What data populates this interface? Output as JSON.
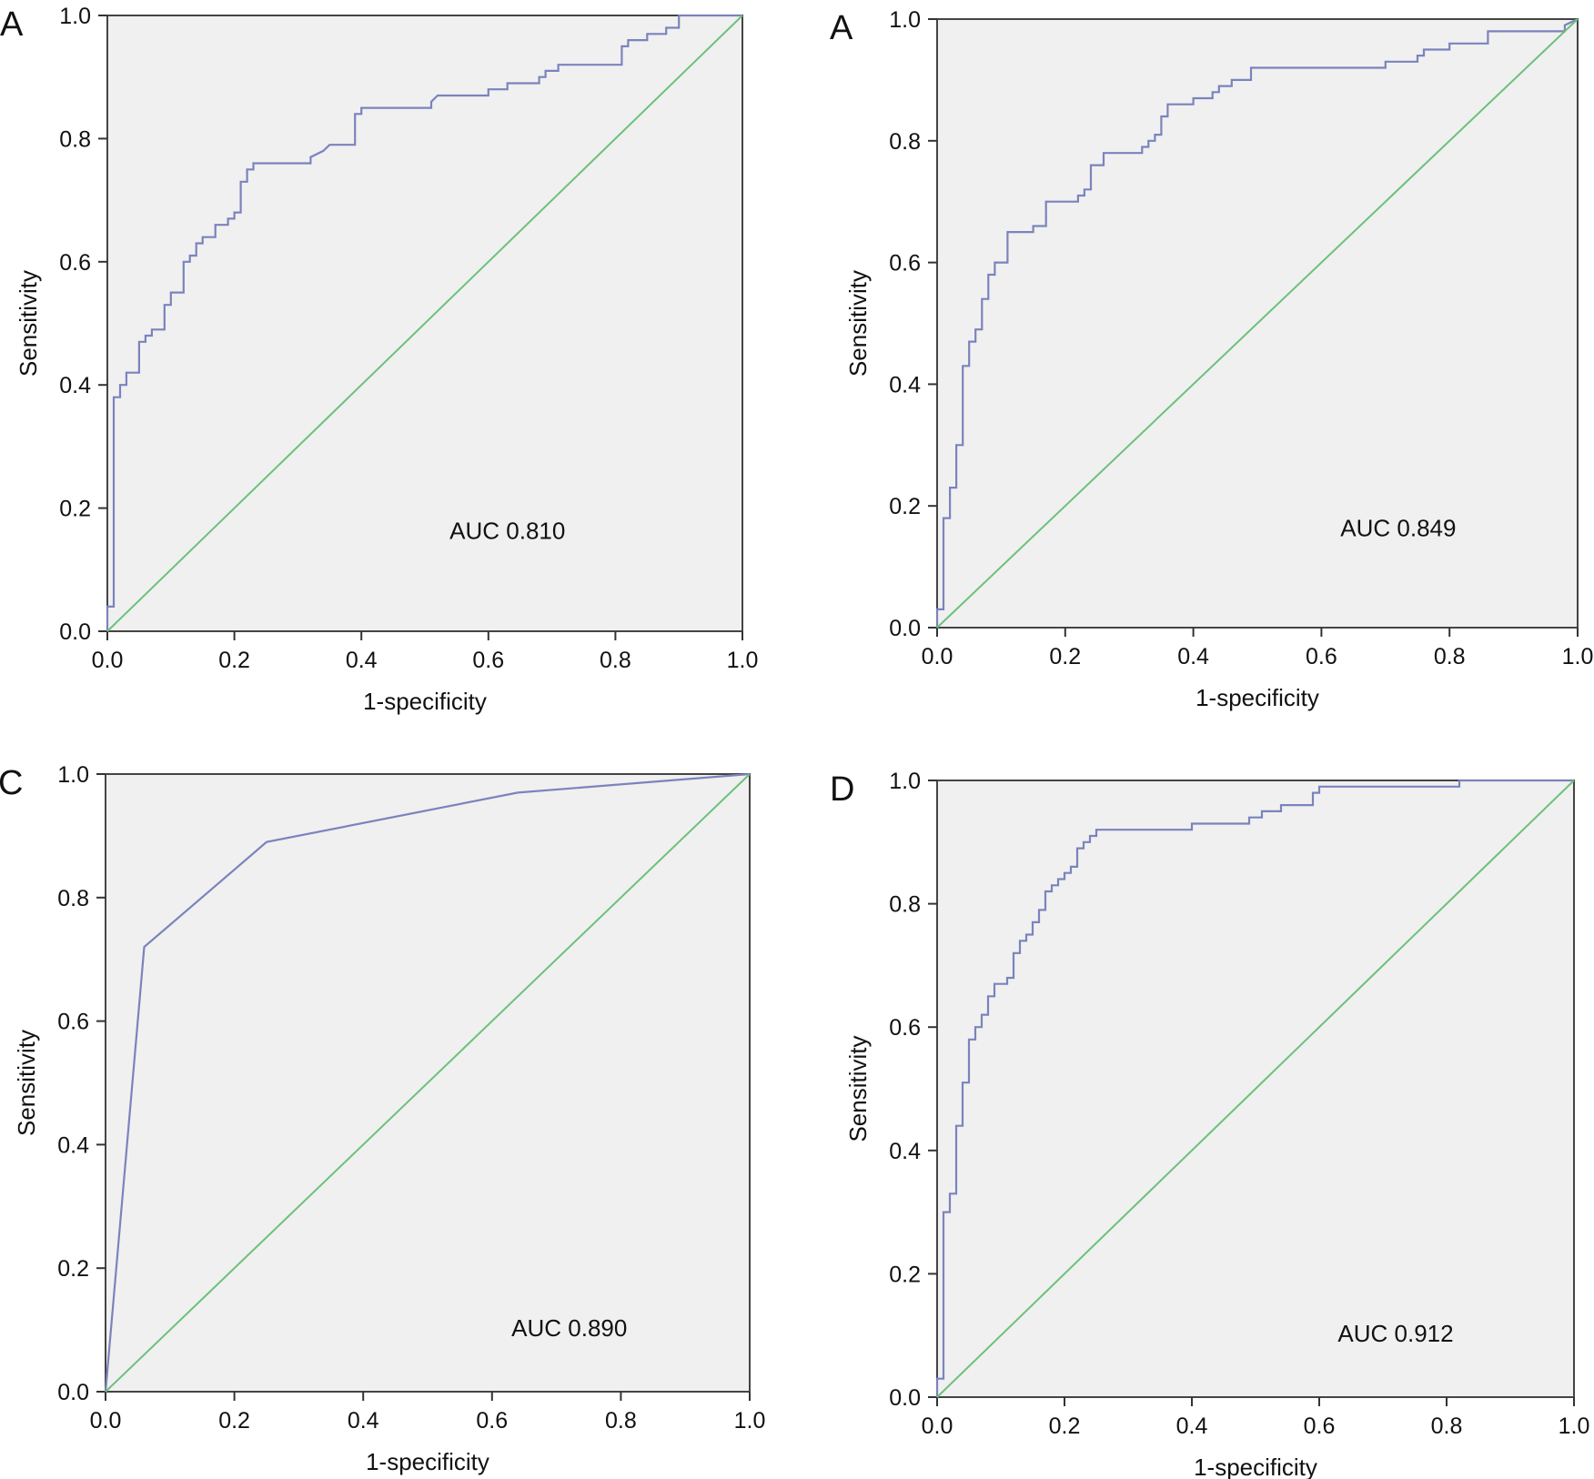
{
  "chart_data": [
    {
      "type": "line",
      "panel_label": "A",
      "xlabel": "1-specificity",
      "ylabel": "Sensitivity",
      "xlim": [
        0.0,
        1.0
      ],
      "ylim": [
        0.0,
        1.0
      ],
      "xticks": [
        "0.0",
        "0.2",
        "0.4",
        "0.6",
        "0.8",
        "1.0"
      ],
      "yticks": [
        "0.0",
        "0.2",
        "0.4",
        "0.6",
        "0.8",
        "1.0"
      ],
      "annotation": "AUC 0.810",
      "annotation_pos": [
        0.63,
        0.15
      ],
      "grid": false,
      "colors": {
        "roc": "#7b83bd",
        "reference": "#6cc17a",
        "plot_bg": "#f0f0f0",
        "frame": "#444444"
      },
      "series": [
        {
          "role": "roc",
          "points": [
            [
              0,
              0
            ],
            [
              0,
              0.04
            ],
            [
              0.01,
              0.04
            ],
            [
              0.01,
              0.38
            ],
            [
              0.02,
              0.38
            ],
            [
              0.02,
              0.4
            ],
            [
              0.03,
              0.4
            ],
            [
              0.03,
              0.42
            ],
            [
              0.05,
              0.42
            ],
            [
              0.05,
              0.47
            ],
            [
              0.06,
              0.47
            ],
            [
              0.06,
              0.48
            ],
            [
              0.07,
              0.48
            ],
            [
              0.07,
              0.49
            ],
            [
              0.09,
              0.49
            ],
            [
              0.09,
              0.53
            ],
            [
              0.1,
              0.53
            ],
            [
              0.1,
              0.55
            ],
            [
              0.12,
              0.55
            ],
            [
              0.12,
              0.6
            ],
            [
              0.13,
              0.6
            ],
            [
              0.13,
              0.61
            ],
            [
              0.14,
              0.61
            ],
            [
              0.14,
              0.63
            ],
            [
              0.15,
              0.63
            ],
            [
              0.15,
              0.64
            ],
            [
              0.17,
              0.64
            ],
            [
              0.17,
              0.66
            ],
            [
              0.19,
              0.66
            ],
            [
              0.19,
              0.67
            ],
            [
              0.2,
              0.67
            ],
            [
              0.2,
              0.68
            ],
            [
              0.21,
              0.68
            ],
            [
              0.21,
              0.73
            ],
            [
              0.22,
              0.73
            ],
            [
              0.22,
              0.75
            ],
            [
              0.23,
              0.75
            ],
            [
              0.23,
              0.76
            ],
            [
              0.32,
              0.76
            ],
            [
              0.32,
              0.77
            ],
            [
              0.34,
              0.78
            ],
            [
              0.35,
              0.79
            ],
            [
              0.39,
              0.79
            ],
            [
              0.39,
              0.84
            ],
            [
              0.4,
              0.84
            ],
            [
              0.4,
              0.85
            ],
            [
              0.51,
              0.85
            ],
            [
              0.51,
              0.86
            ],
            [
              0.52,
              0.87
            ],
            [
              0.6,
              0.87
            ],
            [
              0.6,
              0.88
            ],
            [
              0.63,
              0.88
            ],
            [
              0.63,
              0.89
            ],
            [
              0.68,
              0.89
            ],
            [
              0.68,
              0.9
            ],
            [
              0.69,
              0.9
            ],
            [
              0.69,
              0.91
            ],
            [
              0.71,
              0.91
            ],
            [
              0.71,
              0.92
            ],
            [
              0.81,
              0.92
            ],
            [
              0.81,
              0.95
            ],
            [
              0.82,
              0.95
            ],
            [
              0.82,
              0.96
            ],
            [
              0.85,
              0.96
            ],
            [
              0.85,
              0.97
            ],
            [
              0.88,
              0.97
            ],
            [
              0.88,
              0.98
            ],
            [
              0.9,
              0.98
            ],
            [
              0.9,
              1.0
            ],
            [
              1.0,
              1.0
            ]
          ]
        },
        {
          "role": "reference",
          "points": [
            [
              0,
              0
            ],
            [
              1,
              1
            ]
          ]
        }
      ]
    },
    {
      "type": "line",
      "panel_label": "A",
      "xlabel": "1-specificity",
      "ylabel": "Sensitivity",
      "xlim": [
        0.0,
        1.0
      ],
      "ylim": [
        0.0,
        1.0
      ],
      "xticks": [
        "0.0",
        "0.2",
        "0.4",
        "0.6",
        "0.8",
        "1.0"
      ],
      "yticks": [
        "0.0",
        "0.2",
        "0.4",
        "0.6",
        "0.8",
        "1.0"
      ],
      "annotation": "AUC 0.849",
      "annotation_pos": [
        0.72,
        0.15
      ],
      "grid": false,
      "colors": {
        "roc": "#7b83bd",
        "reference": "#6cc17a",
        "plot_bg": "#f0f0f0",
        "frame": "#444444"
      },
      "series": [
        {
          "role": "roc",
          "points": [
            [
              0,
              0
            ],
            [
              0,
              0.03
            ],
            [
              0.01,
              0.03
            ],
            [
              0.01,
              0.18
            ],
            [
              0.02,
              0.18
            ],
            [
              0.02,
              0.23
            ],
            [
              0.03,
              0.23
            ],
            [
              0.03,
              0.3
            ],
            [
              0.04,
              0.3
            ],
            [
              0.04,
              0.43
            ],
            [
              0.05,
              0.43
            ],
            [
              0.05,
              0.47
            ],
            [
              0.06,
              0.47
            ],
            [
              0.06,
              0.49
            ],
            [
              0.07,
              0.49
            ],
            [
              0.07,
              0.54
            ],
            [
              0.08,
              0.54
            ],
            [
              0.08,
              0.58
            ],
            [
              0.09,
              0.58
            ],
            [
              0.09,
              0.6
            ],
            [
              0.11,
              0.6
            ],
            [
              0.11,
              0.65
            ],
            [
              0.15,
              0.65
            ],
            [
              0.15,
              0.66
            ],
            [
              0.17,
              0.66
            ],
            [
              0.17,
              0.7
            ],
            [
              0.22,
              0.7
            ],
            [
              0.22,
              0.71
            ],
            [
              0.23,
              0.71
            ],
            [
              0.23,
              0.72
            ],
            [
              0.24,
              0.72
            ],
            [
              0.24,
              0.76
            ],
            [
              0.26,
              0.76
            ],
            [
              0.26,
              0.78
            ],
            [
              0.32,
              0.78
            ],
            [
              0.32,
              0.79
            ],
            [
              0.33,
              0.79
            ],
            [
              0.33,
              0.8
            ],
            [
              0.34,
              0.8
            ],
            [
              0.34,
              0.81
            ],
            [
              0.35,
              0.81
            ],
            [
              0.35,
              0.84
            ],
            [
              0.36,
              0.84
            ],
            [
              0.36,
              0.86
            ],
            [
              0.4,
              0.86
            ],
            [
              0.4,
              0.87
            ],
            [
              0.43,
              0.87
            ],
            [
              0.43,
              0.88
            ],
            [
              0.44,
              0.88
            ],
            [
              0.44,
              0.89
            ],
            [
              0.46,
              0.89
            ],
            [
              0.46,
              0.9
            ],
            [
              0.49,
              0.9
            ],
            [
              0.49,
              0.92
            ],
            [
              0.7,
              0.92
            ],
            [
              0.7,
              0.93
            ],
            [
              0.75,
              0.93
            ],
            [
              0.75,
              0.94
            ],
            [
              0.76,
              0.94
            ],
            [
              0.76,
              0.95
            ],
            [
              0.8,
              0.95
            ],
            [
              0.8,
              0.96
            ],
            [
              0.86,
              0.96
            ],
            [
              0.86,
              0.98
            ],
            [
              0.98,
              0.98
            ],
            [
              0.98,
              0.99
            ],
            [
              1.0,
              1.0
            ]
          ]
        },
        {
          "role": "reference",
          "points": [
            [
              0,
              0
            ],
            [
              1,
              1
            ]
          ]
        }
      ]
    },
    {
      "type": "line",
      "panel_label": "C",
      "xlabel": "1-specificity",
      "ylabel": "Sensitivity",
      "xlim": [
        0.0,
        1.0
      ],
      "ylim": [
        0.0,
        1.0
      ],
      "xticks": [
        "0.0",
        "0.2",
        "0.4",
        "0.6",
        "0.8",
        "1.0"
      ],
      "yticks": [
        "0.0",
        "0.2",
        "0.4",
        "0.6",
        "0.8",
        "1.0"
      ],
      "annotation": "AUC 0.890",
      "annotation_pos": [
        0.72,
        0.09
      ],
      "grid": false,
      "colors": {
        "roc": "#7b83bd",
        "reference": "#6cc17a",
        "plot_bg": "#f0f0f0",
        "frame": "#444444"
      },
      "series": [
        {
          "role": "roc",
          "points": [
            [
              0,
              0
            ],
            [
              0.06,
              0.72
            ],
            [
              0.25,
              0.89
            ],
            [
              0.64,
              0.97
            ],
            [
              1.0,
              1.0
            ]
          ]
        },
        {
          "role": "reference",
          "points": [
            [
              0,
              0
            ],
            [
              1,
              1
            ]
          ]
        }
      ]
    },
    {
      "type": "line",
      "panel_label": "D",
      "xlabel": "1-specificity",
      "ylabel": "Sensitivity",
      "xlim": [
        0.0,
        1.0
      ],
      "ylim": [
        0.0,
        1.0
      ],
      "xticks": [
        "0.0",
        "0.2",
        "0.4",
        "0.6",
        "0.8",
        "1.0"
      ],
      "yticks": [
        "0.0",
        "0.2",
        "0.4",
        "0.6",
        "0.8",
        "1.0"
      ],
      "annotation": "AUC 0.912",
      "annotation_pos": [
        0.72,
        0.09
      ],
      "grid": false,
      "colors": {
        "roc": "#7b83bd",
        "reference": "#6cc17a",
        "plot_bg": "#f0f0f0",
        "frame": "#444444"
      },
      "series": [
        {
          "role": "roc",
          "points": [
            [
              0,
              0
            ],
            [
              0,
              0.03
            ],
            [
              0.01,
              0.03
            ],
            [
              0.01,
              0.3
            ],
            [
              0.02,
              0.3
            ],
            [
              0.02,
              0.33
            ],
            [
              0.03,
              0.33
            ],
            [
              0.03,
              0.44
            ],
            [
              0.04,
              0.44
            ],
            [
              0.04,
              0.51
            ],
            [
              0.05,
              0.51
            ],
            [
              0.05,
              0.58
            ],
            [
              0.06,
              0.58
            ],
            [
              0.06,
              0.6
            ],
            [
              0.07,
              0.6
            ],
            [
              0.07,
              0.62
            ],
            [
              0.08,
              0.62
            ],
            [
              0.08,
              0.65
            ],
            [
              0.09,
              0.65
            ],
            [
              0.09,
              0.67
            ],
            [
              0.11,
              0.67
            ],
            [
              0.11,
              0.68
            ],
            [
              0.12,
              0.68
            ],
            [
              0.12,
              0.72
            ],
            [
              0.13,
              0.72
            ],
            [
              0.13,
              0.74
            ],
            [
              0.14,
              0.74
            ],
            [
              0.14,
              0.75
            ],
            [
              0.15,
              0.75
            ],
            [
              0.15,
              0.77
            ],
            [
              0.16,
              0.77
            ],
            [
              0.16,
              0.79
            ],
            [
              0.17,
              0.79
            ],
            [
              0.17,
              0.82
            ],
            [
              0.18,
              0.82
            ],
            [
              0.18,
              0.83
            ],
            [
              0.19,
              0.83
            ],
            [
              0.19,
              0.84
            ],
            [
              0.2,
              0.84
            ],
            [
              0.2,
              0.85
            ],
            [
              0.21,
              0.85
            ],
            [
              0.21,
              0.86
            ],
            [
              0.22,
              0.86
            ],
            [
              0.22,
              0.89
            ],
            [
              0.23,
              0.89
            ],
            [
              0.23,
              0.9
            ],
            [
              0.24,
              0.9
            ],
            [
              0.24,
              0.91
            ],
            [
              0.25,
              0.91
            ],
            [
              0.25,
              0.92
            ],
            [
              0.4,
              0.92
            ],
            [
              0.4,
              0.93
            ],
            [
              0.49,
              0.93
            ],
            [
              0.49,
              0.94
            ],
            [
              0.51,
              0.94
            ],
            [
              0.51,
              0.95
            ],
            [
              0.54,
              0.95
            ],
            [
              0.54,
              0.96
            ],
            [
              0.59,
              0.96
            ],
            [
              0.59,
              0.98
            ],
            [
              0.6,
              0.98
            ],
            [
              0.6,
              0.99
            ],
            [
              0.82,
              0.99
            ],
            [
              0.82,
              1.0
            ],
            [
              1.0,
              1.0
            ]
          ]
        },
        {
          "role": "reference",
          "points": [
            [
              0,
              0
            ],
            [
              1,
              1
            ]
          ]
        }
      ]
    }
  ]
}
